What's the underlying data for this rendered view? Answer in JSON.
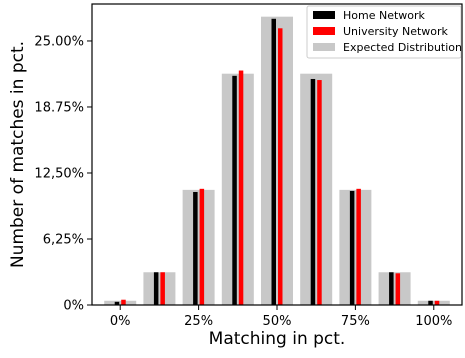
{
  "chart_data": {
    "type": "bar",
    "xlabel": "Matching in pct.",
    "ylabel": "Number of matches in pct.",
    "x_ticks": [
      "0%",
      "25%",
      "50%",
      "75%",
      "100%"
    ],
    "y_ticks": [
      {
        "value": 0,
        "label": "0%"
      },
      {
        "value": 6.25,
        "label": "6,25%"
      },
      {
        "value": 12.5,
        "label": "12,50%"
      },
      {
        "value": 18.75,
        "label": "18.75%"
      },
      {
        "value": 25.0,
        "label": "25.00%"
      }
    ],
    "ylim": [
      0,
      28.5
    ],
    "legend_position": "top-right",
    "x": [
      0,
      12.5,
      25,
      37.5,
      50,
      62.5,
      75,
      87.5,
      100
    ],
    "series": [
      {
        "name": "Home Network",
        "color": "#000000",
        "values": [
          0.3,
          3.1,
          10.7,
          21.7,
          27.1,
          21.4,
          10.8,
          3.1,
          0.4
        ]
      },
      {
        "name": "University Network",
        "color": "#ff0000",
        "values": [
          0.5,
          3.1,
          11.0,
          22.2,
          26.2,
          21.3,
          11.0,
          3.0,
          0.4
        ]
      },
      {
        "name": "Expected Distribution",
        "color": "#c8c8c8",
        "values": [
          0.4,
          3.1,
          10.9,
          21.9,
          27.3,
          21.9,
          10.9,
          3.1,
          0.4
        ]
      }
    ]
  }
}
